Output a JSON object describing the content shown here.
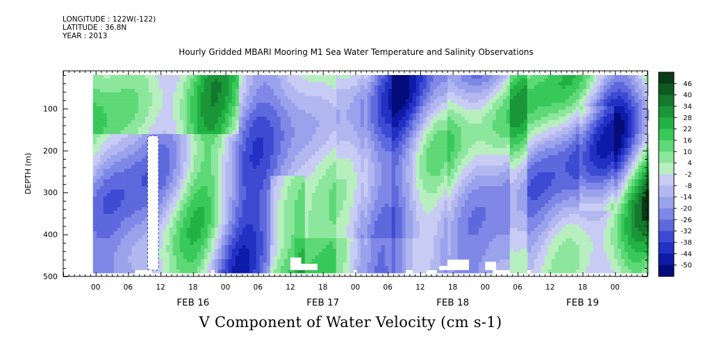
{
  "header": {
    "longitude": "LONGITUDE : 122W(-122)",
    "latitude": "LATITUDE : 36.8N",
    "year": "YEAR : 2013"
  },
  "chart_data": {
    "type": "heatmap",
    "title": "Hourly Gridded MBARI Mooring M1 Sea Water Temperature and Salinity Observations",
    "xlabel": "",
    "ylabel": "DEPTH (m)",
    "colorbar_title": "V Component of Water Velocity (cm s-1)",
    "x_hour_ticks": [
      "00",
      "06",
      "12",
      "18",
      "00",
      "06",
      "12",
      "18",
      "00",
      "06",
      "12",
      "18",
      "00",
      "06",
      "12",
      "18",
      "00"
    ],
    "x_date_labels": [
      "FEB 16",
      "FEB 17",
      "FEB 18",
      "FEB 19"
    ],
    "x_range_hours": [
      -12,
      96
    ],
    "data_start_hour": -6.5,
    "y_ticks": [
      100,
      200,
      300,
      400,
      500
    ],
    "y_range": [
      500,
      10
    ],
    "data_depth_range": [
      20,
      485
    ],
    "colorbar_labels": [
      "46",
      "40",
      "34",
      "28",
      "22",
      "16",
      "10",
      "4",
      "-2",
      "-8",
      "-14",
      "-20",
      "-26",
      "-32",
      "-38",
      "-44",
      "-50"
    ],
    "colorbar_colors": [
      "#0b3b16",
      "#0f5a22",
      "#14782d",
      "#1a9638",
      "#22b244",
      "#38c95a",
      "#5fd877",
      "#8ce69d",
      "#b7efbf",
      "#c8ccf4",
      "#b2b7f0",
      "#9aa2ec",
      "#7f88e6",
      "#5e69dd",
      "#3d4bd3",
      "#2231c4",
      "#0d1ba8",
      "#040c7a"
    ],
    "features": [
      {
        "kind": "gap",
        "hours": [
          3.6,
          5.6
        ],
        "depth": [
          165,
          485
        ],
        "note": "white data gap"
      },
      {
        "kind": "mask",
        "hours": [
          4,
          6
        ],
        "depth": [
          10,
          20
        ]
      },
      {
        "kind": "mask",
        "hours": [
          30,
          32
        ],
        "depth": [
          455,
          485
        ]
      },
      {
        "kind": "mask",
        "hours": [
          32,
          35
        ],
        "depth": [
          470,
          485
        ]
      },
      {
        "kind": "mask",
        "hours": [
          59,
          63
        ],
        "depth": [
          460,
          485
        ]
      },
      {
        "kind": "mask",
        "hours": [
          57.5,
          59
        ],
        "depth": [
          475,
          485
        ]
      },
      {
        "kind": "mask",
        "hours": [
          66,
          68
        ],
        "depth": [
          465,
          485
        ]
      }
    ]
  },
  "colors": {
    "background": "#ffffff",
    "axis": "#000000",
    "mostly_negative_field": "#b2b7f0",
    "mostly_positive_field": "#8ce69d"
  }
}
